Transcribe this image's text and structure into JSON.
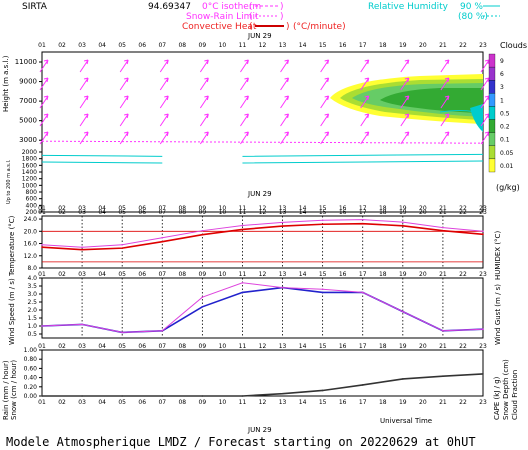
{
  "header": {
    "site": "SIRTA",
    "coords": "94.69347",
    "legend_isotherm": "0°C isotherm",
    "legend_snow_rain": "Snow-Rain Limit",
    "legend_convective": "Convective Heat",
    "legend_units": "(°C/minute)",
    "legend_rh": "Relative Humidity",
    "rh_90": "90 %",
    "rh_80": "(80 %)",
    "colors": {
      "isotherm": "#ff33ff",
      "convective": "#cc0000",
      "rh": "#00cccc"
    }
  },
  "footer": {
    "text": "Modele Atmospherique LMDZ / Forecast starting on 20220629 at 0hUT",
    "universal_time": "Universal Time"
  },
  "chart_data": [
    {
      "type": "heatmap",
      "panel": "clouds_wind_height",
      "date_label": "JUN 29",
      "hours": [
        "01",
        "02",
        "03",
        "04",
        "05",
        "06",
        "07",
        "08",
        "09",
        "10",
        "11",
        "12",
        "13",
        "14",
        "15",
        "16",
        "17",
        "18",
        "19",
        "20",
        "21",
        "22",
        "23"
      ],
      "ylabel": "Height (m a.s.l.)",
      "ylabel_low": "Up to 200 m a.s.l.",
      "yticks_upper": [
        11000,
        9000,
        7000,
        5000,
        3000
      ],
      "yticks_lower": [
        2000,
        1800,
        1600,
        1400,
        1200,
        1000,
        800,
        600,
        400,
        200
      ],
      "colorbar_title": "Clouds",
      "colorbar_unit": "(g/kg)",
      "colorbar_ticks": [
        "9",
        "6",
        "3",
        "1",
        "0.5",
        "0.2",
        "0.1",
        "0.05",
        "0.01"
      ],
      "colorbar_colors": [
        "#cc33cc",
        "#9933cc",
        "#3333cc",
        "#3399ff",
        "#00cccc",
        "#33aa33",
        "#66cc66",
        "#aadd33",
        "#ffff33"
      ],
      "isotherm_0c_height_m": 2900,
      "rh_contour_heights_m": [
        1900,
        1700
      ],
      "wind_arrow_direction": "from south-west"
    },
    {
      "type": "line",
      "panel": "temperature",
      "date_label": "JUN 29",
      "ylabel": "Temperature (°C)",
      "ylabel_right": "HUMIDEX (°C)",
      "yticks": [
        "24.0",
        "20.0",
        "16.0",
        "12.0",
        "8.0"
      ],
      "ylim": [
        8,
        25
      ],
      "x": [
        1,
        3,
        5,
        7,
        9,
        11,
        13,
        15,
        17,
        19,
        21,
        23
      ],
      "series": [
        {
          "name": "Temperature",
          "color": "#dd0000",
          "values": [
            14.8,
            14.0,
            14.5,
            16.6,
            18.9,
            20.6,
            21.7,
            22.3,
            22.5,
            21.8,
            20.2,
            19.0
          ]
        },
        {
          "name": "HUMIDEX",
          "color": "#dd44dd",
          "values": [
            15.6,
            14.8,
            15.6,
            17.9,
            20.2,
            21.9,
            22.9,
            23.6,
            23.8,
            23.0,
            21.2,
            20.0
          ]
        }
      ],
      "reference_lines": [
        20,
        10
      ]
    },
    {
      "type": "line",
      "panel": "wind",
      "ylabel": "Wind Speed (m / s)",
      "ylabel_right": "Wind Gust (m / s)",
      "yticks": [
        "4.0",
        "3.5",
        "3.0",
        "2.5",
        "2.0",
        "1.5",
        "1.0",
        "0.5"
      ],
      "ylim": [
        0.25,
        4.0
      ],
      "x": [
        1,
        3,
        5,
        7,
        9,
        11,
        13,
        15,
        17,
        19,
        21,
        23
      ],
      "series": [
        {
          "name": "Wind Speed",
          "color": "#2222cc",
          "values": [
            1.0,
            1.1,
            0.6,
            0.7,
            2.2,
            3.1,
            3.4,
            3.1,
            3.1,
            1.9,
            0.7,
            0.8
          ]
        },
        {
          "name": "Wind Gust",
          "color": "#dd44dd",
          "values": [
            1.0,
            1.1,
            0.6,
            0.7,
            2.8,
            3.7,
            3.4,
            3.3,
            3.1,
            1.9,
            0.7,
            0.8
          ]
        }
      ]
    },
    {
      "type": "line",
      "panel": "precipitation",
      "date_label": "JUN 29",
      "ylabel_left_1": "Rain (mm / hour)",
      "ylabel_left_2": "Snow (cm / hour)",
      "ylabel_right_1": "CAPE (kJ / g)",
      "ylabel_right_2": "Snow Depth (cm)",
      "ylabel_right_3": "Cloud Fraction",
      "yticks": [
        "1.00",
        "0.80",
        "0.60",
        "0.40",
        "0.20",
        "0.00"
      ],
      "ylim": [
        0,
        1
      ],
      "x": [
        1,
        3,
        5,
        7,
        9,
        11,
        13,
        15,
        17,
        19,
        21,
        23
      ],
      "series": [
        {
          "name": "Cloud Fraction",
          "color": "#333333",
          "values": [
            0,
            0,
            0,
            0,
            0,
            0,
            0.05,
            0.12,
            0.24,
            0.37,
            0.43,
            0.48
          ]
        }
      ]
    }
  ]
}
